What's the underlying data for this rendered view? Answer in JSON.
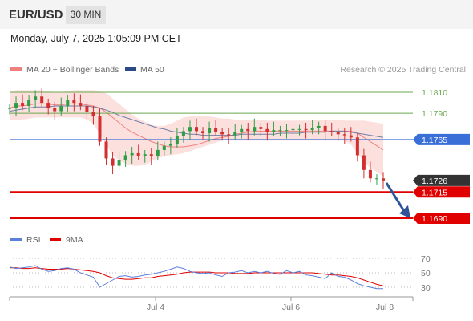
{
  "header": {
    "symbol": "EUR/USD",
    "timeframe": "30 MIN"
  },
  "datetime": "Monday, July 7, 2025 1:05:09 PM CET",
  "legend": {
    "ma20": {
      "label": "MA 20 + Bollinger Bands",
      "color": "#f08080"
    },
    "ma50": {
      "label": "MA 50",
      "color": "#2b4a86"
    },
    "credit": "Research © 2025 Trading Central"
  },
  "rsi_legend": {
    "rsi": {
      "label": "RSI",
      "color": "#5b7fdc"
    },
    "ma9": {
      "label": "9MA",
      "color": "#e00000"
    }
  },
  "chart_data": [
    {
      "type": "line",
      "title": "EUR/USD 30 MIN",
      "y_range": [
        1.167,
        1.183
      ],
      "levels": [
        {
          "value": 1.181,
          "label": "1.1810",
          "kind": "resistance",
          "color": "#6aa84f"
        },
        {
          "value": 1.179,
          "label": "1.1790",
          "kind": "resistance",
          "color": "#6aa84f"
        },
        {
          "value": 1.1765,
          "label": "1.1765",
          "kind": "pivot",
          "color": "#3b6fd8"
        },
        {
          "value": 1.1726,
          "label": "1.1726",
          "kind": "last-price",
          "color": "#333333"
        },
        {
          "value": 1.1715,
          "label": "1.1715",
          "kind": "support",
          "color": "#e00000"
        },
        {
          "value": 1.169,
          "label": "1.1690",
          "kind": "support",
          "color": "#e00000"
        }
      ],
      "x_ticks": [
        "Jul 4",
        "Jul 6",
        "Jul 8"
      ],
      "price": [
        1.1795,
        1.18,
        1.1797,
        1.1803,
        1.1806,
        1.18,
        1.1795,
        1.1792,
        1.1797,
        1.1803,
        1.18,
        1.1797,
        1.1791,
        1.1787,
        1.1763,
        1.1747,
        1.174,
        1.1745,
        1.175,
        1.1752,
        1.1749,
        1.1751,
        1.1749,
        1.1755,
        1.1759,
        1.1761,
        1.1768,
        1.1773,
        1.1777,
        1.1773,
        1.1771,
        1.1776,
        1.1772,
        1.177,
        1.1769,
        1.1772,
        1.1775,
        1.1773,
        1.1777,
        1.1775,
        1.1772,
        1.1774,
        1.1774,
        1.1774,
        1.1775,
        1.1775,
        1.1774,
        1.1776,
        1.1778,
        1.1773,
        1.1772,
        1.177,
        1.1769,
        1.1767,
        1.175,
        1.1736,
        1.1728,
        1.1728,
        1.1726
      ],
      "ma20": [
        1.1795,
        1.1797,
        1.1797,
        1.1798,
        1.1799,
        1.1799,
        1.1799,
        1.1798,
        1.1798,
        1.1799,
        1.1799,
        1.1799,
        1.1798,
        1.1797,
        1.1795,
        1.1791,
        1.1786,
        1.1781,
        1.1776,
        1.1772,
        1.1769,
        1.1766,
        1.1763,
        1.1761,
        1.1759,
        1.1758,
        1.1758,
        1.1758,
        1.1759,
        1.176,
        1.1762,
        1.1764,
        1.1766,
        1.1767,
        1.1768,
        1.177,
        1.1771,
        1.1772,
        1.1773,
        1.1773,
        1.1773,
        1.1773,
        1.1773,
        1.1773,
        1.1773,
        1.1773,
        1.1773,
        1.1773,
        1.1773,
        1.1773,
        1.1773,
        1.1773,
        1.1773,
        1.1773,
        1.1771,
        1.1767,
        1.1763,
        1.1759,
        1.1755
      ],
      "ma50": [
        1.1792,
        1.1793,
        1.1794,
        1.1795,
        1.1796,
        1.1796,
        1.1796,
        1.1797,
        1.1797,
        1.1797,
        1.1797,
        1.1797,
        1.1797,
        1.1796,
        1.1795,
        1.1793,
        1.1791,
        1.1788,
        1.1786,
        1.1784,
        1.1782,
        1.178,
        1.1778,
        1.1776,
        1.1775,
        1.1773,
        1.1772,
        1.1771,
        1.177,
        1.177,
        1.1769,
        1.1769,
        1.1769,
        1.1769,
        1.1769,
        1.1769,
        1.177,
        1.177,
        1.177,
        1.177,
        1.177,
        1.177,
        1.1771,
        1.1771,
        1.1771,
        1.1771,
        1.1772,
        1.1772,
        1.1772,
        1.1772,
        1.1773,
        1.1773,
        1.1773,
        1.1772,
        1.1771,
        1.177,
        1.1769,
        1.1768,
        1.1767
      ],
      "bb_upper": [
        1.181,
        1.1812,
        1.1812,
        1.1812,
        1.1812,
        1.1812,
        1.1811,
        1.181,
        1.181,
        1.1811,
        1.1812,
        1.1812,
        1.1812,
        1.1812,
        1.1811,
        1.1809,
        1.1804,
        1.1799,
        1.1794,
        1.1789,
        1.1785,
        1.1782,
        1.1779,
        1.1778,
        1.1778,
        1.178,
        1.1783,
        1.1786,
        1.1787,
        1.1787,
        1.1787,
        1.1787,
        1.1786,
        1.1785,
        1.1785,
        1.1784,
        1.1784,
        1.1784,
        1.1784,
        1.1784,
        1.1783,
        1.1783,
        1.1783,
        1.1783,
        1.1783,
        1.1783,
        1.1783,
        1.1783,
        1.1784,
        1.1784,
        1.1784,
        1.1784,
        1.1783,
        1.1783,
        1.1783,
        1.1783,
        1.1782,
        1.1781,
        1.178
      ],
      "bb_lower": [
        1.1784,
        1.1784,
        1.1784,
        1.1785,
        1.1786,
        1.1786,
        1.1786,
        1.1786,
        1.1786,
        1.1786,
        1.1786,
        1.1786,
        1.1784,
        1.178,
        1.177,
        1.176,
        1.175,
        1.1745,
        1.1742,
        1.174,
        1.174,
        1.1741,
        1.1744,
        1.1747,
        1.1749,
        1.175,
        1.1751,
        1.1752,
        1.1754,
        1.1756,
        1.1758,
        1.176,
        1.1762,
        1.1764,
        1.1765,
        1.1764,
        1.1764,
        1.1764,
        1.1764,
        1.1764,
        1.1764,
        1.1764,
        1.1764,
        1.1764,
        1.1764,
        1.1764,
        1.1764,
        1.1764,
        1.1764,
        1.1764,
        1.1764,
        1.1764,
        1.1764,
        1.176,
        1.1752,
        1.1744,
        1.1738,
        1.1734,
        1.173
      ],
      "forecast": {
        "from": 1.1726,
        "to": 1.169
      }
    },
    {
      "type": "line",
      "title": "RSI",
      "y_range": [
        20,
        80
      ],
      "y_ticks": [
        70,
        50,
        30
      ],
      "rsi": [
        58,
        56,
        57,
        58,
        60,
        55,
        52,
        53,
        56,
        57,
        55,
        50,
        47,
        44,
        30,
        35,
        40,
        45,
        46,
        44,
        45,
        47,
        48,
        50,
        52,
        55,
        58,
        56,
        52,
        50,
        49,
        50,
        47,
        45,
        50,
        51,
        53,
        50,
        52,
        50,
        52,
        49,
        48,
        53,
        50,
        52,
        47,
        46,
        44,
        42,
        50,
        45,
        44,
        40,
        35,
        32,
        30,
        28,
        28
      ],
      "ma9": [
        57,
        57,
        56,
        56,
        57,
        56,
        55,
        55,
        55,
        56,
        55,
        54,
        53,
        52,
        50,
        46,
        43,
        42,
        41,
        41,
        42,
        43,
        43,
        45,
        46,
        47,
        48,
        50,
        51,
        51,
        51,
        51,
        50,
        50,
        50,
        49,
        49,
        49,
        50,
        50,
        50,
        50,
        50,
        50,
        50,
        50,
        50,
        50,
        49,
        48,
        47,
        47,
        46,
        45,
        43,
        40,
        37,
        34,
        32
      ]
    }
  ]
}
